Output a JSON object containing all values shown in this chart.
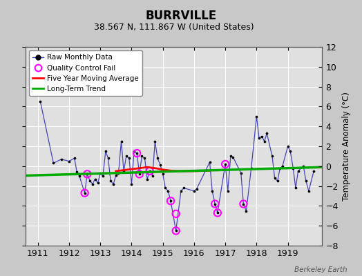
{
  "title": "BURRVILLE",
  "subtitle": "38.567 N, 111.867 W (United States)",
  "ylabel": "Temperature Anomaly (°C)",
  "credit": "Berkeley Earth",
  "xlim": [
    1910.6,
    1920.1
  ],
  "ylim": [
    -8,
    12
  ],
  "yticks": [
    -8,
    -6,
    -4,
    -2,
    0,
    2,
    4,
    6,
    8,
    10,
    12
  ],
  "xticks": [
    1911,
    1912,
    1913,
    1914,
    1915,
    1916,
    1917,
    1918,
    1919
  ],
  "bg_color": "#c8c8c8",
  "plot_bg_color": "#e0e0e0",
  "raw_line_color": "#4444bb",
  "raw_marker_color": "black",
  "qc_fail_color": "magenta",
  "moving_avg_color": "red",
  "trend_color": "#00aa00",
  "raw_data": [
    [
      1911.08,
      6.5
    ],
    [
      1911.5,
      0.3
    ],
    [
      1911.75,
      0.7
    ],
    [
      1912.0,
      0.5
    ],
    [
      1912.17,
      0.8
    ],
    [
      1912.25,
      -0.6
    ],
    [
      1912.33,
      -1.0
    ],
    [
      1912.5,
      -2.7
    ],
    [
      1912.58,
      -0.8
    ],
    [
      1912.67,
      -1.5
    ],
    [
      1912.75,
      -1.8
    ],
    [
      1912.83,
      -1.3
    ],
    [
      1912.92,
      -1.7
    ],
    [
      1913.0,
      -0.7
    ],
    [
      1913.08,
      -1.0
    ],
    [
      1913.17,
      1.5
    ],
    [
      1913.25,
      0.8
    ],
    [
      1913.33,
      -1.5
    ],
    [
      1913.42,
      -1.8
    ],
    [
      1913.5,
      -0.9
    ],
    [
      1913.58,
      -0.7
    ],
    [
      1913.67,
      2.5
    ],
    [
      1913.75,
      -0.5
    ],
    [
      1913.83,
      1.0
    ],
    [
      1913.92,
      0.8
    ],
    [
      1914.0,
      -1.8
    ],
    [
      1914.08,
      1.5
    ],
    [
      1914.17,
      1.3
    ],
    [
      1914.25,
      -0.8
    ],
    [
      1914.33,
      1.0
    ],
    [
      1914.42,
      0.8
    ],
    [
      1914.5,
      -1.3
    ],
    [
      1914.58,
      -0.5
    ],
    [
      1914.67,
      -1.0
    ],
    [
      1914.75,
      2.5
    ],
    [
      1914.83,
      0.8
    ],
    [
      1914.92,
      0.1
    ],
    [
      1915.0,
      -0.8
    ],
    [
      1915.08,
      -2.2
    ],
    [
      1915.17,
      -2.5
    ],
    [
      1915.25,
      -3.5
    ],
    [
      1915.42,
      -6.5
    ],
    [
      1915.58,
      -2.5
    ],
    [
      1915.67,
      -2.2
    ],
    [
      1916.0,
      -2.5
    ],
    [
      1916.08,
      -2.3
    ],
    [
      1916.5,
      0.4
    ],
    [
      1916.58,
      -2.5
    ],
    [
      1916.67,
      -3.8
    ],
    [
      1916.75,
      -4.7
    ],
    [
      1917.0,
      0.2
    ],
    [
      1917.08,
      -2.5
    ],
    [
      1917.17,
      1.0
    ],
    [
      1917.25,
      0.9
    ],
    [
      1917.5,
      -0.7
    ],
    [
      1917.58,
      -3.8
    ],
    [
      1917.67,
      -4.5
    ],
    [
      1917.83,
      -0.2
    ],
    [
      1918.0,
      5.0
    ],
    [
      1918.08,
      2.8
    ],
    [
      1918.17,
      3.0
    ],
    [
      1918.25,
      2.5
    ],
    [
      1918.33,
      3.3
    ],
    [
      1918.5,
      1.0
    ],
    [
      1918.58,
      -1.2
    ],
    [
      1918.67,
      -1.5
    ],
    [
      1918.75,
      -0.2
    ],
    [
      1918.83,
      0.0
    ],
    [
      1919.0,
      2.0
    ],
    [
      1919.08,
      1.5
    ],
    [
      1919.17,
      -0.2
    ],
    [
      1919.25,
      -2.2
    ],
    [
      1919.33,
      -0.5
    ],
    [
      1919.5,
      0.0
    ],
    [
      1919.58,
      -1.5
    ],
    [
      1919.67,
      -2.5
    ],
    [
      1919.83,
      -0.5
    ]
  ],
  "qc_fail_points": [
    [
      1912.5,
      -2.7
    ],
    [
      1912.58,
      -0.8
    ],
    [
      1914.17,
      1.3
    ],
    [
      1914.25,
      -0.8
    ],
    [
      1914.58,
      -0.5
    ],
    [
      1915.25,
      -3.5
    ],
    [
      1915.42,
      -4.8
    ],
    [
      1915.42,
      -6.5
    ],
    [
      1916.67,
      -3.8
    ],
    [
      1916.75,
      -4.7
    ],
    [
      1917.0,
      0.2
    ],
    [
      1917.58,
      -3.8
    ]
  ],
  "moving_avg_x": [
    1913.5,
    1914.0,
    1914.5,
    1914.75,
    1915.0,
    1915.25,
    1915.5,
    1915.75,
    1916.0,
    1916.5
  ],
  "moving_avg_y": [
    -0.5,
    -0.3,
    -0.1,
    -0.2,
    -0.35,
    -0.45,
    -0.5,
    -0.5,
    -0.5,
    -0.45
  ],
  "trend_x": [
    1910.6,
    1920.1
  ],
  "trend_y": [
    -0.95,
    -0.1
  ]
}
